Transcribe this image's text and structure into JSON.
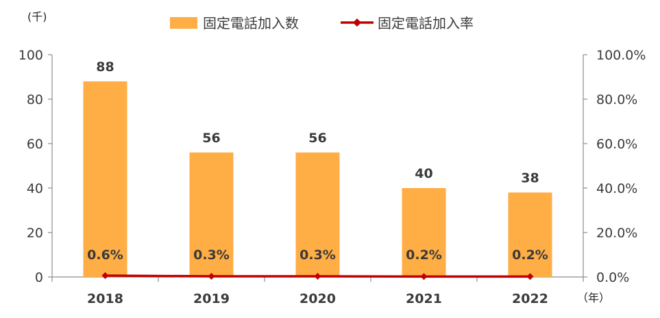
{
  "chart_data": {
    "type": "bar",
    "categories": [
      "2018",
      "2019",
      "2020",
      "2021",
      "2022"
    ],
    "series": [
      {
        "name": "固定電話加入数",
        "type": "bar",
        "axis": "left",
        "values": [
          88,
          56,
          56,
          40,
          38
        ],
        "labels": [
          "88",
          "56",
          "56",
          "40",
          "38"
        ],
        "color": "#FFAD45"
      },
      {
        "name": "固定電話加入率",
        "type": "line",
        "axis": "right",
        "values": [
          0.6,
          0.3,
          0.3,
          0.2,
          0.2
        ],
        "labels": [
          "0.6%",
          "0.3%",
          "0.3%",
          "0.2%",
          "0.2%"
        ],
        "color": "#C00000"
      }
    ],
    "y_left": {
      "unit": "(千)",
      "ylim": [
        0,
        100
      ],
      "ticks": [
        "0",
        "20",
        "40",
        "60",
        "80",
        "100"
      ]
    },
    "y_right": {
      "ylim": [
        0,
        100
      ],
      "ticks": [
        "0.0%",
        "20.0%",
        "40.0%",
        "60.0%",
        "80.0%",
        "100.0%"
      ]
    },
    "x_unit": "（年）",
    "legend_position": "top",
    "grid": false
  }
}
